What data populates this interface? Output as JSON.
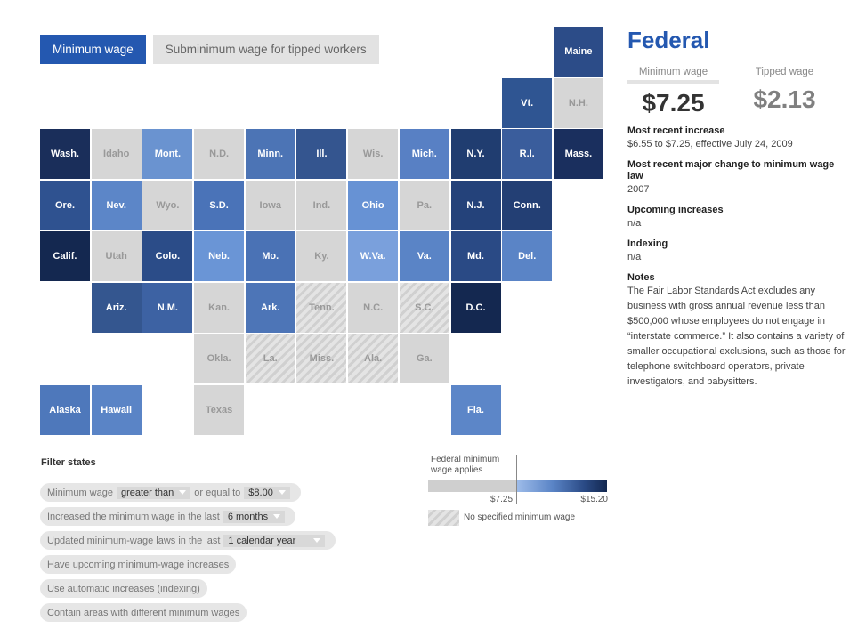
{
  "tabs": [
    "Minimum wage",
    "Subminimum wage for tipped workers"
  ],
  "states": [
    {
      "label": "Maine",
      "color": "#2c4c88"
    },
    {
      "label": "Vt.",
      "color": "#2f5592"
    },
    {
      "label": "N.H.",
      "color": "gray"
    },
    {
      "label": "Wash.",
      "color": "#1a2e5a"
    },
    {
      "label": "Idaho",
      "color": "gray"
    },
    {
      "label": "Mont.",
      "color": "#6a93d0"
    },
    {
      "label": "N.D.",
      "color": "gray"
    },
    {
      "label": "Minn.",
      "color": "#4c74b5"
    },
    {
      "label": "Ill.",
      "color": "#34558f"
    },
    {
      "label": "Wis.",
      "color": "gray"
    },
    {
      "label": "Mich.",
      "color": "#5880c4"
    },
    {
      "label": "N.Y.",
      "color": "#203d70"
    },
    {
      "label": "R.I.",
      "color": "#3a5d9c"
    },
    {
      "label": "Mass.",
      "color": "#1a2f5e"
    },
    {
      "label": "Ore.",
      "color": "#2f5290"
    },
    {
      "label": "Nev.",
      "color": "#5c86c8"
    },
    {
      "label": "Wyo.",
      "color": "gray"
    },
    {
      "label": "S.D.",
      "color": "#4a73b8"
    },
    {
      "label": "Iowa",
      "color": "gray"
    },
    {
      "label": "Ind.",
      "color": "gray"
    },
    {
      "label": "Ohio",
      "color": "#6792d4"
    },
    {
      "label": "Pa.",
      "color": "gray"
    },
    {
      "label": "N.J.",
      "color": "#24427a"
    },
    {
      "label": "Conn.",
      "color": "#233f74"
    },
    {
      "label": "Calif.",
      "color": "#142850"
    },
    {
      "label": "Utah",
      "color": "gray"
    },
    {
      "label": "Colo.",
      "color": "#2b4c88"
    },
    {
      "label": "Neb.",
      "color": "#6a95d6"
    },
    {
      "label": "Mo.",
      "color": "#4a72b5"
    },
    {
      "label": "Ky.",
      "color": "gray"
    },
    {
      "label": "W.Va.",
      "color": "#7aa0dc"
    },
    {
      "label": "Va.",
      "color": "#5a84c6"
    },
    {
      "label": "Md.",
      "color": "#2a4a85"
    },
    {
      "label": "Del.",
      "color": "#5a84c6"
    },
    {
      "label": "Ariz.",
      "color": "#34568f"
    },
    {
      "label": "N.M.",
      "color": "#3d62a3"
    },
    {
      "label": "Kan.",
      "color": "gray"
    },
    {
      "label": "Ark.",
      "color": "#4d75b7"
    },
    {
      "label": "Tenn.",
      "color": "hatch"
    },
    {
      "label": "N.C.",
      "color": "gray"
    },
    {
      "label": "S.C.",
      "color": "hatch"
    },
    {
      "label": "D.C.",
      "color": "#142850"
    },
    {
      "label": "Okla.",
      "color": "gray"
    },
    {
      "label": "La.",
      "color": "hatch"
    },
    {
      "label": "Miss.",
      "color": "hatch"
    },
    {
      "label": "Ala.",
      "color": "hatch"
    },
    {
      "label": "Ga.",
      "color": "gray"
    },
    {
      "label": "Alaska",
      "color": "#4e78bb"
    },
    {
      "label": "Hawaii",
      "color": "#5a84c6"
    },
    {
      "label": "Texas",
      "color": "gray"
    },
    {
      "label": "Fla.",
      "color": "#5c86c8"
    }
  ],
  "detail": {
    "title": "Federal",
    "min_label": "Minimum wage",
    "min_value": "$7.25",
    "tip_label": "Tipped wage",
    "tip_value": "$2.13",
    "sections": [
      {
        "h": "Most recent increase",
        "p": "$6.55 to $7.25, effective July 24, 2009"
      },
      {
        "h": "Most recent major change to minimum wage law",
        "p": "2007"
      },
      {
        "h": "Upcoming increases",
        "p": "n/a"
      },
      {
        "h": "Indexing",
        "p": "n/a"
      },
      {
        "h": "Notes",
        "p": "The Fair Labor Standards Act excludes any business with gross annual revenue less than $500,000 whose employees do not engage in “interstate commerce.” It also contains a variety of smaller occupational exclusions, such as those for telephone switchboard operators, private investigators, and babysitters."
      }
    ]
  },
  "filters": {
    "title": "Filter states",
    "f1_a": "Minimum wage",
    "f1_sel1": "greater than",
    "f1_b": "or equal to",
    "f1_sel2": "$8.00",
    "f2_a": "Increased the minimum wage in the last",
    "f2_sel": "6 months",
    "f3_a": "Updated minimum-wage laws in the last",
    "f3_sel": "1 calendar year",
    "f4": "Have upcoming minimum-wage increases",
    "f5": "Use automatic increases (indexing)",
    "f6": "Contain areas with different minimum wages"
  },
  "legend": {
    "federal": "Federal minimum wage applies",
    "low": "$7.25",
    "high": "$15.20",
    "none": "No specified minimum wage"
  }
}
